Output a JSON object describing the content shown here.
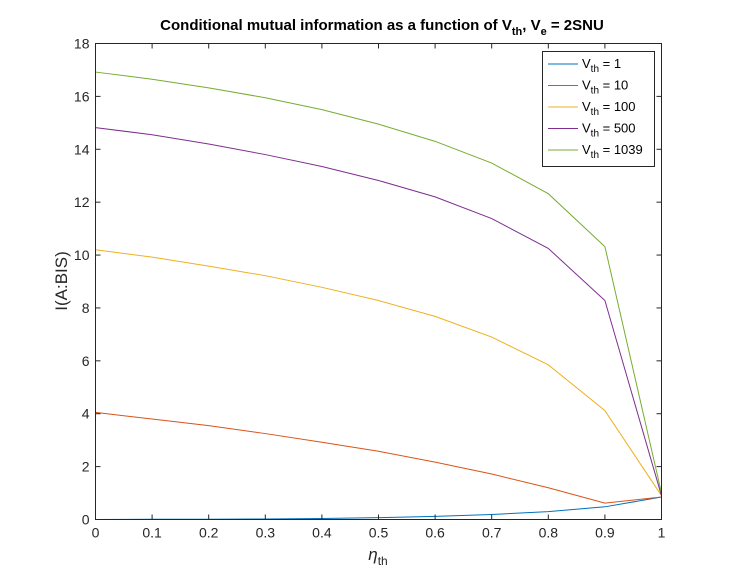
{
  "chart_data": {
    "type": "line",
    "title": {
      "prefix": "Conditional mutual information as a function of V",
      "prefix_sub": "th",
      "middle": ", V",
      "middle_sub": "e",
      "suffix": " = 2SNU"
    },
    "xlabel": {
      "symbol": "η",
      "sub": "th"
    },
    "ylabel": "I(A:BIS)",
    "xlim": [
      0,
      1
    ],
    "ylim": [
      0,
      18
    ],
    "xticks": [
      0,
      0.1,
      0.2,
      0.3,
      0.4,
      0.5,
      0.6,
      0.7,
      0.8,
      0.9,
      1
    ],
    "xtick_labels": [
      "0",
      "0.1",
      "0.2",
      "0.3",
      "0.4",
      "0.5",
      "0.6",
      "0.7",
      "0.8",
      "0.9",
      "1"
    ],
    "yticks": [
      0,
      2,
      4,
      6,
      8,
      10,
      12,
      14,
      16,
      18
    ],
    "ytick_labels": [
      "0",
      "2",
      "4",
      "6",
      "8",
      "10",
      "12",
      "14",
      "16",
      "18"
    ],
    "grid": false,
    "legend_position": "top-right",
    "x": [
      0,
      0.1,
      0.2,
      0.3,
      0.4,
      0.5,
      0.6,
      0.7,
      0.8,
      0.9,
      1
    ],
    "series": [
      {
        "name_var": "V",
        "name_sub": "th",
        "name_val": " = 1",
        "color": "#0072BD",
        "values": [
          0.0,
          0.01,
          0.01,
          0.02,
          0.04,
          0.07,
          0.12,
          0.19,
          0.3,
          0.48,
          0.85
        ]
      },
      {
        "name_var": "V",
        "name_sub": "th",
        "name_val": " = 10",
        "color": "#D95319",
        "values": [
          4.05,
          3.8,
          3.55,
          3.25,
          2.92,
          2.58,
          2.17,
          1.72,
          1.2,
          0.62,
          0.85
        ]
      },
      {
        "name_var": "V",
        "name_sub": "th",
        "name_val": " = 100",
        "color": "#EDB120",
        "values": [
          10.2,
          9.92,
          9.58,
          9.22,
          8.78,
          8.28,
          7.68,
          6.9,
          5.85,
          4.12,
          0.9
        ]
      },
      {
        "name_var": "V",
        "name_sub": "th",
        "name_val": " = 500",
        "color": "#7E2F8E",
        "values": [
          14.82,
          14.55,
          14.2,
          13.8,
          13.35,
          12.82,
          12.2,
          11.38,
          10.25,
          8.28,
          0.9
        ]
      },
      {
        "name_var": "V",
        "name_sub": "th",
        "name_val": " = 1039",
        "color": "#77AC30",
        "values": [
          16.92,
          16.65,
          16.32,
          15.95,
          15.5,
          14.95,
          14.3,
          13.48,
          12.32,
          10.32,
          1.0
        ]
      }
    ]
  }
}
